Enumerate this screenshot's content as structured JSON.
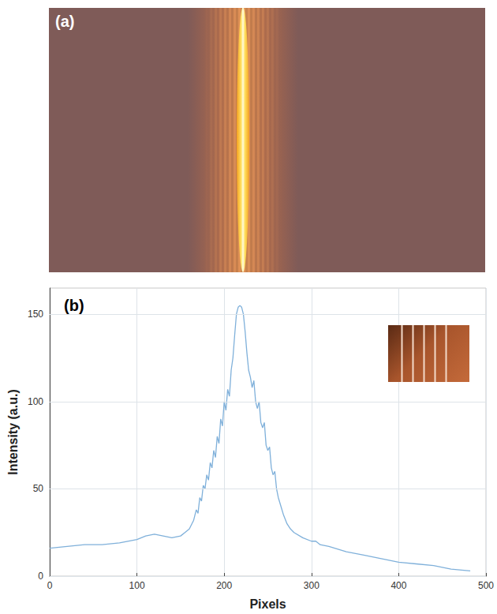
{
  "photo": {
    "label": "(a)"
  },
  "chart_data": {
    "type": "line",
    "panel_label": "(b)",
    "x_label": "Pixels",
    "y_label": "Intensity (a.u.)",
    "color": "#7fb0da",
    "x": [
      0,
      20,
      40,
      60,
      80,
      100,
      110,
      120,
      130,
      140,
      150,
      155,
      160,
      165,
      168,
      170,
      172,
      174,
      176,
      178,
      180,
      182,
      184,
      186,
      188,
      190,
      192,
      194,
      196,
      198,
      200,
      202,
      204,
      206,
      208,
      210,
      212,
      214,
      216,
      218,
      220,
      222,
      224,
      226,
      228,
      230,
      232,
      234,
      236,
      238,
      240,
      242,
      244,
      246,
      248,
      250,
      252,
      254,
      256,
      258,
      260,
      262,
      265,
      268,
      272,
      276,
      280,
      290,
      300,
      305,
      310,
      320,
      340,
      360,
      380,
      400,
      420,
      440,
      460,
      482
    ],
    "values": [
      16,
      17,
      18,
      18,
      19,
      21,
      23,
      24,
      23,
      22,
      23,
      25,
      27,
      32,
      38,
      36,
      45,
      43,
      52,
      50,
      58,
      55,
      65,
      62,
      72,
      68,
      80,
      76,
      90,
      86,
      100,
      95,
      107,
      103,
      118,
      125,
      138,
      150,
      154,
      155,
      154,
      150,
      140,
      128,
      118,
      114,
      108,
      112,
      100,
      96,
      100,
      88,
      85,
      88,
      75,
      72,
      74,
      62,
      58,
      60,
      50,
      45,
      40,
      35,
      30,
      27,
      25,
      22,
      20,
      20,
      18,
      17,
      14,
      12,
      10,
      8,
      7,
      6,
      4,
      3
    ],
    "xlim": [
      0,
      500
    ],
    "xticks": [
      0,
      100,
      200,
      300,
      400,
      500
    ],
    "ylim": [
      0,
      165
    ],
    "yticks": [
      0,
      50,
      100,
      150
    ],
    "grid": true
  }
}
